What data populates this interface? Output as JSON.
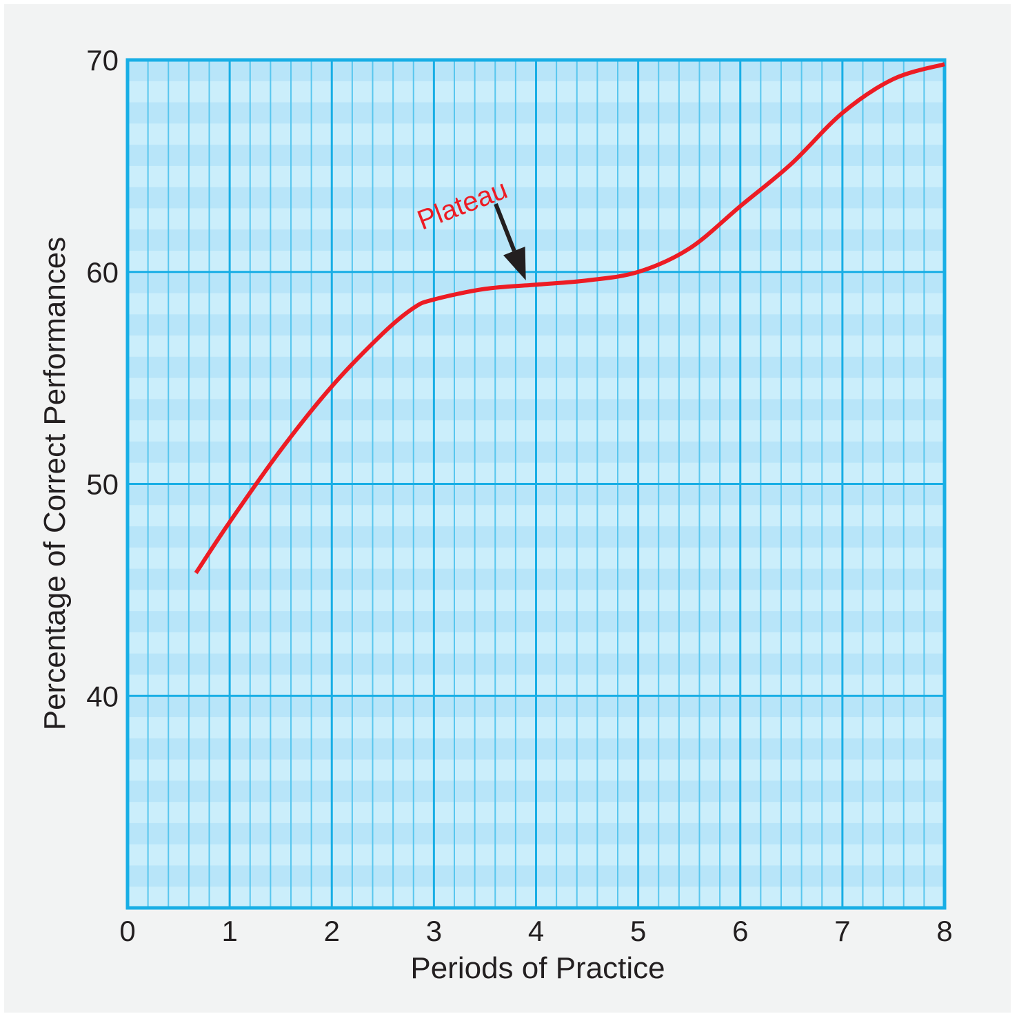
{
  "chart_data": {
    "type": "line",
    "xlabel": "Periods of Practice",
    "ylabel": "Percentage of Correct Performances",
    "xlim": [
      0,
      8
    ],
    "ylim": [
      30,
      70
    ],
    "x_ticks": [
      "0",
      "1",
      "2",
      "3",
      "4",
      "5",
      "6",
      "7",
      "8"
    ],
    "y_ticks": [
      {
        "value": 40,
        "label": "40"
      },
      {
        "value": 50,
        "label": "50"
      },
      {
        "value": 60,
        "label": "60"
      },
      {
        "value": 70,
        "label": "70"
      }
    ],
    "grid": true,
    "series": [
      {
        "x": [
          0.67,
          1.0,
          1.5,
          2.0,
          2.5,
          2.8,
          3.0,
          3.5,
          4.0,
          4.5,
          5.0,
          5.5,
          6.0,
          6.5,
          7.0,
          7.5,
          8.0
        ],
        "y": [
          45.8,
          48.2,
          51.6,
          54.6,
          57.1,
          58.3,
          58.7,
          59.2,
          59.4,
          59.6,
          60.0,
          61.1,
          63.1,
          65.1,
          67.5,
          69.1,
          69.8
        ],
        "color": "#ed1c24"
      }
    ],
    "annotations": [
      {
        "text": "Plateau",
        "color": "#ed1c24",
        "arrow_to": {
          "x": 3.9,
          "y": 59.6
        }
      }
    ]
  },
  "colors": {
    "background": "#f2f3f3",
    "plot_fill": "#cbeefb",
    "plot_band": "#b8e5f9",
    "grid_major": "#18aee5",
    "grid_minor": "#58c6ee",
    "line": "#ed1c24",
    "arrow": "#231f20"
  }
}
